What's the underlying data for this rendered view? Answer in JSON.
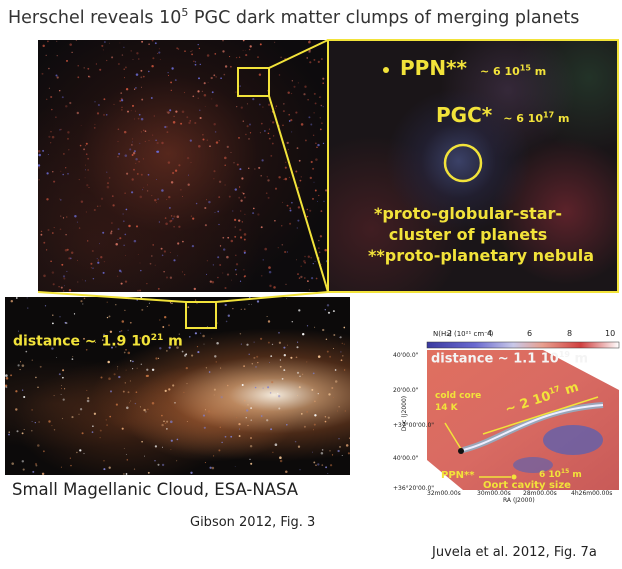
{
  "title": {
    "prefix": "Herschel reveals 10",
    "sup": "5",
    "suffix": " PGC dark matter clumps of merging planets"
  },
  "zoom_panel": {
    "ppn_label": "PPN**",
    "ppn_size": "~ 6 10",
    "ppn_size_exp": "15",
    "ppn_unit": " m",
    "pgc_label": "PGC*",
    "pgc_size": "~ 6 10",
    "pgc_size_exp": "17",
    "pgc_unit": " m",
    "footnote1_line1": "*proto-globular-star-",
    "footnote1_line2": "cluster of planets",
    "footnote2": "**proto-planetary nebula"
  },
  "smc_panel": {
    "distance": "distance ~ 1.9 10",
    "distance_exp": "21",
    "distance_unit": " m"
  },
  "captions": {
    "smc": "Small Magellanic Cloud, ESA-NASA",
    "gibson": "Gibson 2012, Fig. 3",
    "juvela": "Juvela et al. 2012, Fig. 7a"
  },
  "juvela_panel": {
    "colorbar_title": "N(H₂) (10²¹ cm⁻²)",
    "colorbar_ticks": [
      "2",
      "4",
      "6",
      "8",
      "10"
    ],
    "y_ticks": [
      "40'00.0\"",
      "20'00.0\"",
      "+37°00'00.0\"",
      "40'00.0\"",
      "+36°20'00.0\""
    ],
    "y_axis_label": "Dec (J2000)",
    "x_ticks": [
      "32m00.00s",
      "30m00.00s",
      "28m00.00s",
      "4h26m00.00s"
    ],
    "x_axis_label": "RA (J2000)",
    "distance": "distance ~ 1.1 10",
    "distance_exp": "19",
    "distance_unit": " m",
    "cold_core_line1": "cold core",
    "cold_core_line2": "14 K",
    "length": "~ 2 10",
    "length_exp": "17",
    "length_unit": " m",
    "ppn": "PPN**",
    "ppn_size": "6 10",
    "ppn_size_exp": "15",
    "ppn_unit": " m",
    "oort": "Oort cavity size"
  },
  "colors": {
    "highlight": "#f2e33a",
    "background": "#ffffff"
  }
}
